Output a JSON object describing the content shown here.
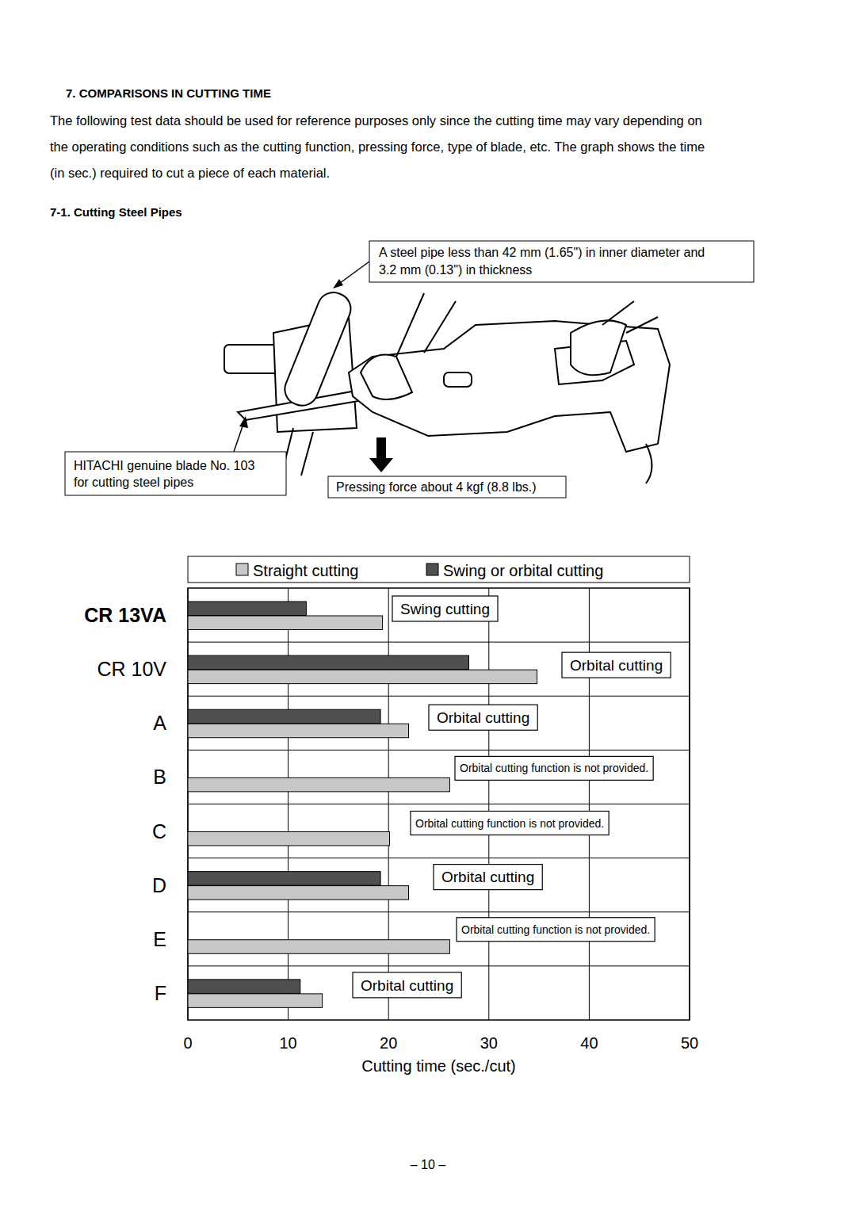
{
  "header": {
    "title": "7. COMPARISONS IN CUTTING TIME"
  },
  "intro": {
    "lines": [
      "The following test data should be used for reference purposes only since the cutting time may vary depending on",
      "the operating conditions such as the cutting function, pressing force, type of blade, etc.  The graph shows the time",
      "(in sec.) required to cut a piece of each material."
    ]
  },
  "figure": {
    "section": "7-1. Cutting Steel Pipes",
    "callouts": {
      "pipe": [
        "A steel pipe less than 42 mm (1.65\") in inner diameter and",
        "3.2 mm (0.13\") in thickness"
      ],
      "blade": [
        "HITACHI genuine blade No. 103",
        "for cutting steel pipes"
      ],
      "force": "Pressing force about 4 kgf (8.8 lbs.)"
    }
  },
  "chart_data": {
    "type": "bar",
    "orientation": "horizontal",
    "categories": [
      "CR 13VA",
      "CR 10V",
      "A",
      "B",
      "C",
      "D",
      "E",
      "F"
    ],
    "series": [
      {
        "name": "Straight cutting",
        "color": "#c8c8c8",
        "values": [
          19.4,
          34.8,
          22.0,
          26.1,
          20.1,
          22.0,
          26.1,
          13.4
        ]
      },
      {
        "name": "Swing or orbital cutting",
        "color": "#505050",
        "values": [
          11.8,
          28.0,
          19.2,
          null,
          null,
          19.2,
          null,
          11.2
        ]
      }
    ],
    "annotations": [
      "Swing cutting",
      "Orbital cutting",
      "Orbital cutting",
      "Orbital cutting function is not provided.",
      "Orbital cutting function is not provided.",
      "Orbital cutting",
      "Orbital cutting function is not provided.",
      "Orbital cutting"
    ],
    "xlim": [
      0,
      50
    ],
    "xticks": [
      0,
      10,
      20,
      30,
      40,
      50
    ],
    "x_label": "Cutting time (sec./cut)",
    "grid": true,
    "legend": "top"
  },
  "footer": {
    "page": "– 10 –"
  }
}
